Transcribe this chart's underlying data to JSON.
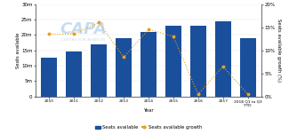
{
  "years": [
    "2010",
    "2011",
    "2012",
    "2013",
    "2014",
    "2015",
    "2016",
    "2017",
    "2018 Q1 to Q3\nYTD"
  ],
  "seats_available": [
    12500000,
    14500000,
    17000000,
    19000000,
    21000000,
    23000000,
    23000000,
    24500000,
    19000000
  ],
  "seats_growth": [
    0.135,
    0.135,
    0.16,
    0.085,
    0.145,
    0.13,
    0.005,
    0.065,
    0.005
  ],
  "bar_color": "#1a4f9c",
  "line_color": "#e8a020",
  "ylabel_left": "Seats available",
  "ylabel_right": "Seats available growth (%)",
  "xlabel": "Year",
  "ylim_left": [
    0,
    30000000
  ],
  "ylim_right": [
    0,
    0.2
  ],
  "yticks_left": [
    0,
    5000000,
    10000000,
    15000000,
    20000000,
    25000000,
    30000000
  ],
  "ytick_labels_left": [
    "0",
    "5m",
    "10m",
    "15m",
    "20m",
    "25m",
    "30m"
  ],
  "yticks_right": [
    0.0,
    0.05,
    0.1,
    0.15,
    0.2
  ],
  "ytick_labels_right": [
    "0%",
    "5%",
    "10%",
    "15%",
    "20%"
  ],
  "legend_bar": "Seats available",
  "legend_line": "Seats available growth",
  "background_color": "#ffffff",
  "watermark_text1": "CAPA",
  "watermark_text2": "CENTRE FOR AVIATION"
}
